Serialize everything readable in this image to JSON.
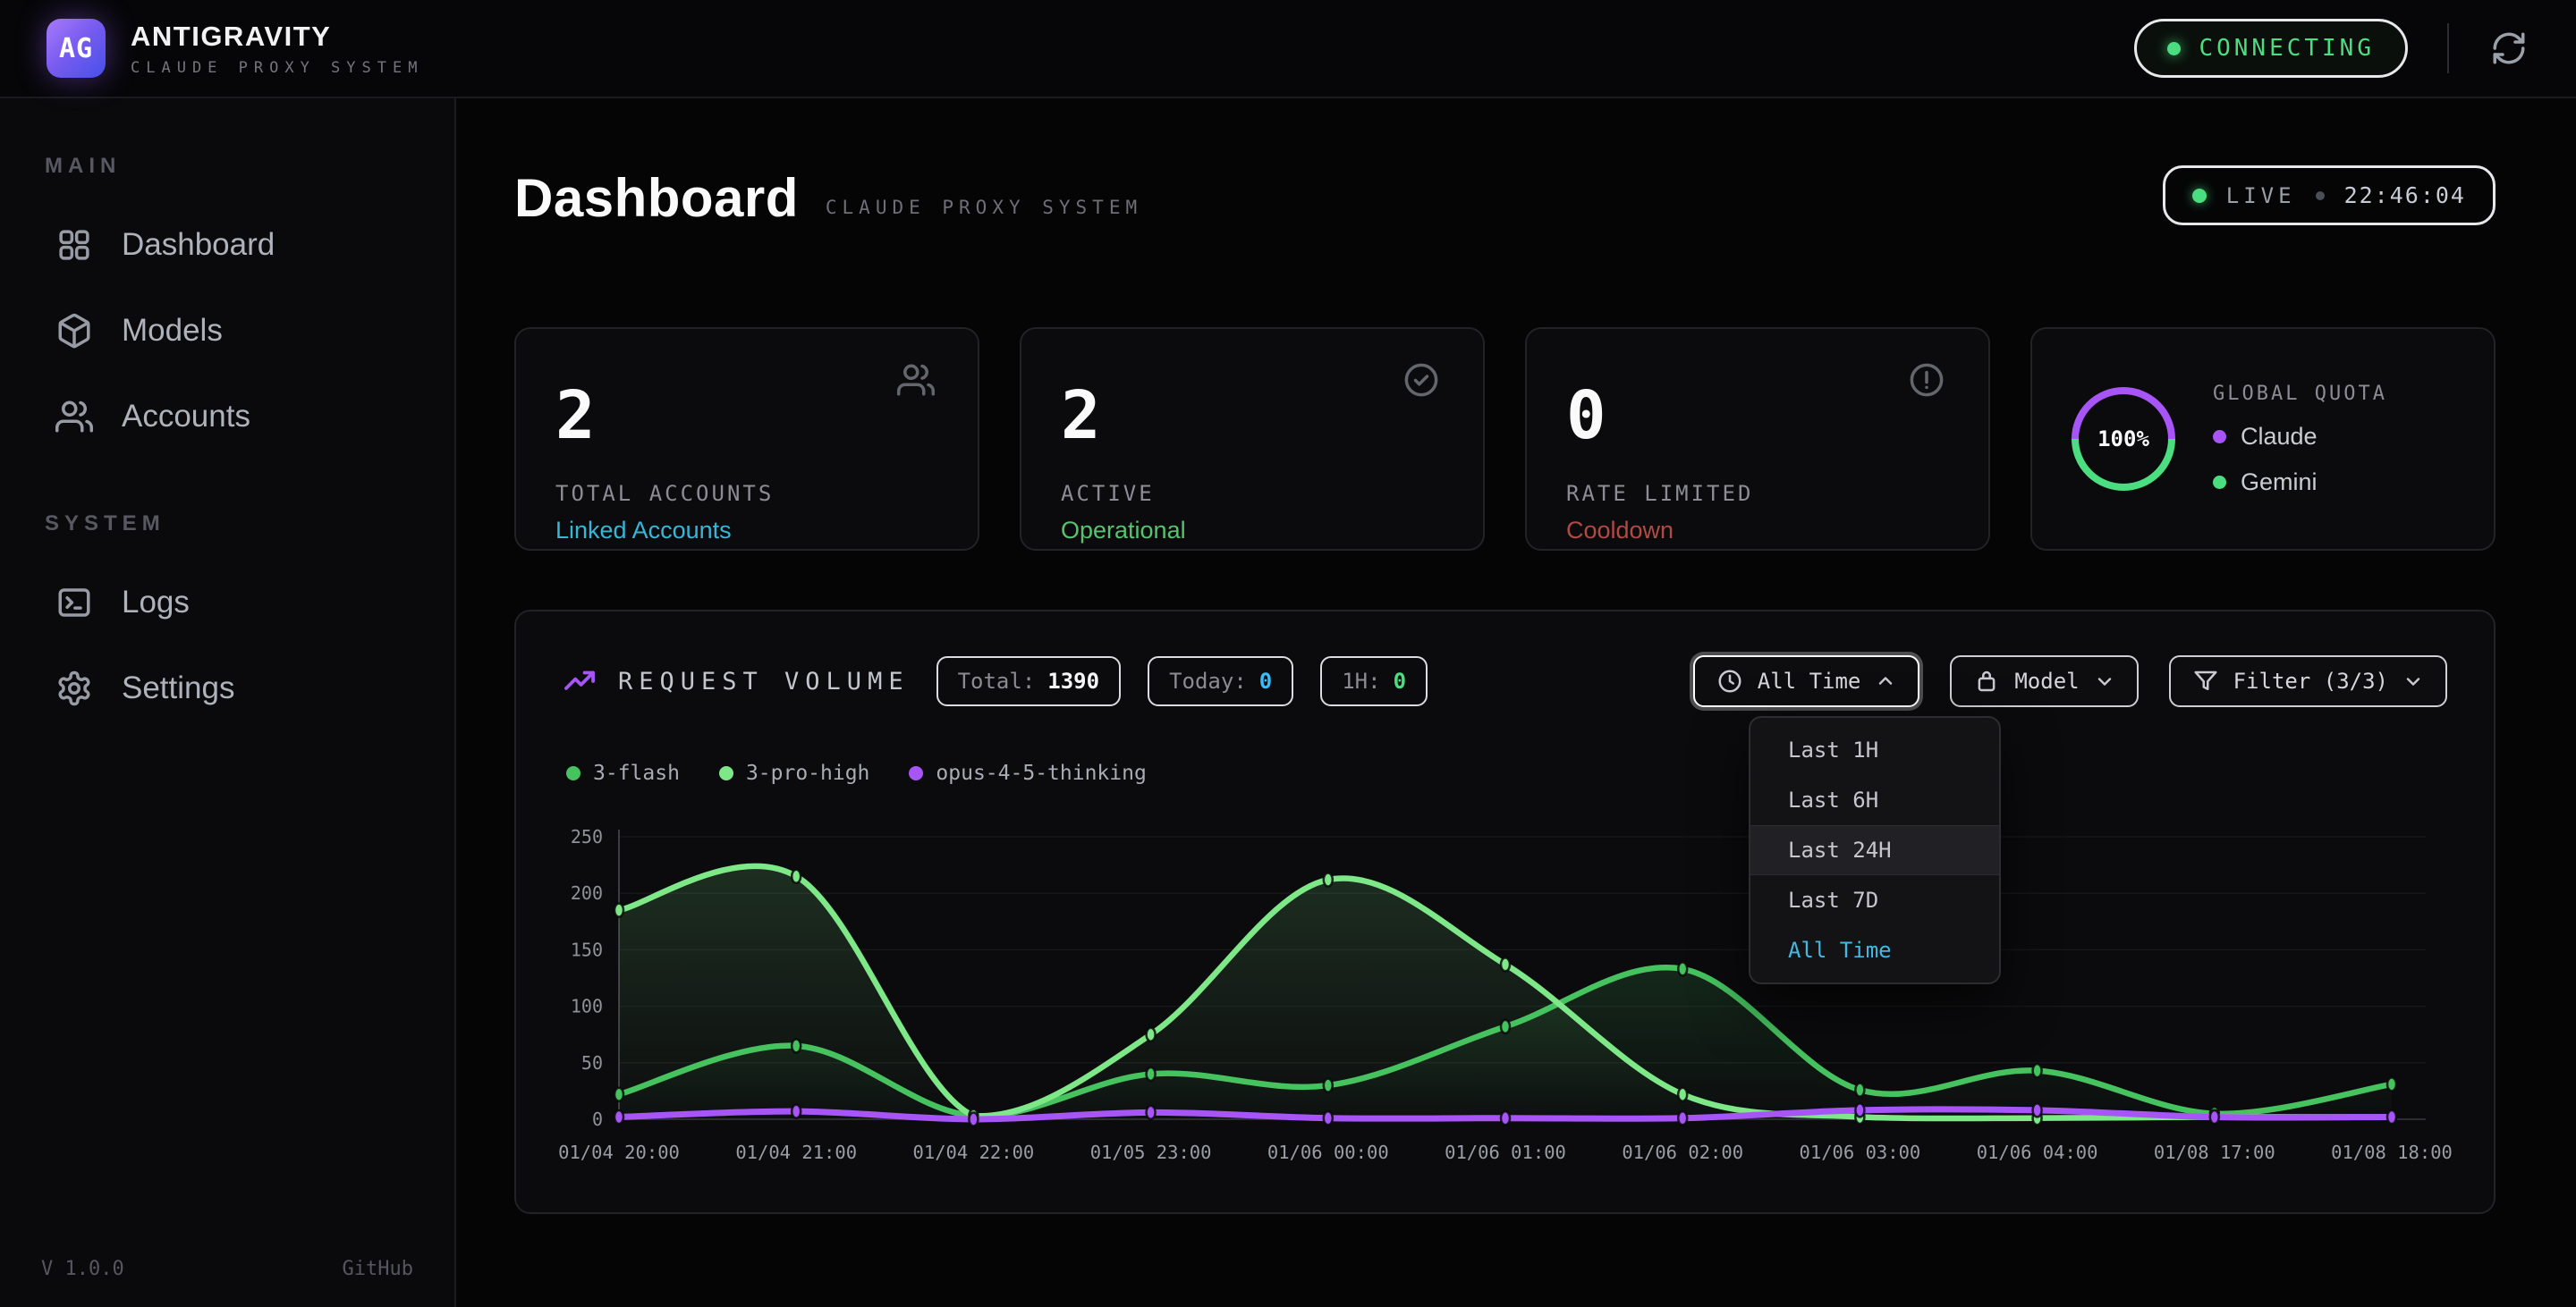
{
  "header": {
    "logo_text": "AG",
    "app_name": "ANTIGRAVITY",
    "app_tagline": "CLAUDE PROXY SYSTEM",
    "status": "CONNECTING",
    "status_color": "#4ade80"
  },
  "sidebar": {
    "sections": [
      {
        "label": "MAIN",
        "items": [
          {
            "icon": "grid-icon",
            "label": "Dashboard"
          },
          {
            "icon": "cube-icon",
            "label": "Models"
          },
          {
            "icon": "users-icon",
            "label": "Accounts"
          }
        ]
      },
      {
        "label": "SYSTEM",
        "items": [
          {
            "icon": "terminal-icon",
            "label": "Logs"
          },
          {
            "icon": "gear-icon",
            "label": "Settings"
          }
        ]
      }
    ],
    "version": "V 1.0.0",
    "github_link": "GitHub"
  },
  "page_header": {
    "title": "Dashboard",
    "subtitle": "CLAUDE PROXY SYSTEM",
    "live_label": "LIVE",
    "clock": "22:46:04"
  },
  "stats": [
    {
      "value": "2",
      "label": "TOTAL ACCOUNTS",
      "sublabel": "Linked Accounts",
      "sublabel_color": "#38b6d6"
    },
    {
      "value": "2",
      "label": "ACTIVE",
      "sublabel": "Operational",
      "sublabel_color": "#57c46d"
    },
    {
      "value": "0",
      "label": "RATE LIMITED",
      "sublabel": "Cooldown",
      "sublabel_color": "#b04a42"
    }
  ],
  "quota": {
    "percent": "100%",
    "label": "GLOBAL QUOTA",
    "providers": [
      {
        "name": "Claude",
        "color": "#a855f7"
      },
      {
        "name": "Gemini",
        "color": "#4ade80"
      }
    ]
  },
  "chart_header": {
    "title": "REQUEST VOLUME",
    "badges": [
      {
        "label": "Total:",
        "value": "1390",
        "value_color": "#f5f5f7"
      },
      {
        "label": "Today:",
        "value": "0",
        "value_color": "#38bdf8"
      },
      {
        "label": "1H:",
        "value": "0",
        "value_color": "#4ade80"
      }
    ],
    "buttons": [
      {
        "label": "All Time",
        "icon": "clock-icon",
        "state": "open"
      },
      {
        "label": "Model",
        "icon": "model-icon",
        "state": "closed"
      },
      {
        "label": "Filter (3/3)",
        "icon": "funnel-icon",
        "state": "closed"
      }
    ]
  },
  "time_range_menu": {
    "items": [
      {
        "label": "Last 1H",
        "state": "normal"
      },
      {
        "label": "Last 6H",
        "state": "normal"
      },
      {
        "label": "Last 24H",
        "state": "highlighted"
      },
      {
        "label": "Last 7D",
        "state": "normal"
      },
      {
        "label": "All Time",
        "state": "selected"
      }
    ]
  },
  "chart_data": {
    "type": "line",
    "title": "REQUEST VOLUME",
    "x": [
      "01/04 20:00",
      "01/04 21:00",
      "01/04 22:00",
      "01/05 23:00",
      "01/06 00:00",
      "01/06 01:00",
      "01/06 02:00",
      "01/06 03:00",
      "01/06 04:00",
      "01/08 17:00",
      "01/08 18:00"
    ],
    "series": [
      {
        "name": "3-flash",
        "color": "#46c35f",
        "fill": true,
        "values": [
          22,
          65,
          3,
          40,
          30,
          82,
          133,
          26,
          43,
          5,
          31
        ]
      },
      {
        "name": "3-pro-high",
        "color": "#7ee787",
        "fill": true,
        "values": [
          185,
          215,
          3,
          75,
          212,
          137,
          22,
          2,
          1,
          2,
          2
        ]
      },
      {
        "name": "opus-4-5-thinking",
        "color": "#a855f7",
        "fill": false,
        "values": [
          2,
          7,
          0,
          6,
          1,
          1,
          1,
          8,
          8,
          2,
          2
        ]
      }
    ],
    "yticks": [
      0,
      50,
      100,
      150,
      200,
      250
    ],
    "ylim": [
      0,
      250
    ],
    "grid": true,
    "legend_position": "top-left"
  }
}
